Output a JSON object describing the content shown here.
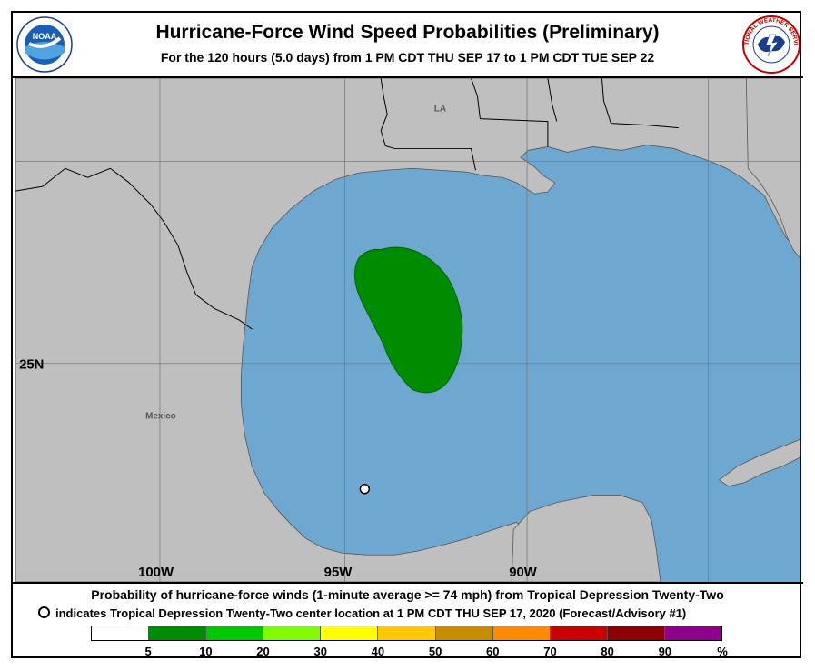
{
  "header": {
    "title": "Hurricane-Force Wind Speed Probabilities (Preliminary)",
    "subtitle": "For the 120 hours (5.0 days) from 1 PM CDT THU SEP 17 to 1 PM CDT TUE SEP 22",
    "noaa_logo_text": "NOAA",
    "nws_logo_text": "NATIONAL WEATHER SERVICE"
  },
  "map": {
    "labels": {
      "state": "LA",
      "country": "Mexico",
      "lat_25": "25N",
      "lon_100": "100W",
      "lon_95": "95W",
      "lon_90": "90W"
    },
    "colors": {
      "land": "#bfbfbf",
      "water": "#6ea7cf",
      "probability_area": "#008c00"
    },
    "probability_area_category": "5-10%",
    "center_marker": "Tropical Depression Twenty-Two center location"
  },
  "caption": {
    "line1": "Probability of hurricane-force winds (1-minute average >= 74 mph) from Tropical Depression Twenty-Two",
    "line2": "indicates Tropical Depression Twenty-Two center location at 1 PM CDT THU SEP 17, 2020 (Forecast/Advisory #1)"
  },
  "legend": {
    "colors": [
      "#ffffff",
      "#008c00",
      "#00c800",
      "#7ffc00",
      "#ffff00",
      "#ffc800",
      "#c88c00",
      "#ff8c00",
      "#c80000",
      "#8c0000",
      "#8c008c"
    ],
    "labels": [
      "5",
      "10",
      "20",
      "30",
      "40",
      "50",
      "60",
      "70",
      "80",
      "90",
      "%"
    ]
  }
}
